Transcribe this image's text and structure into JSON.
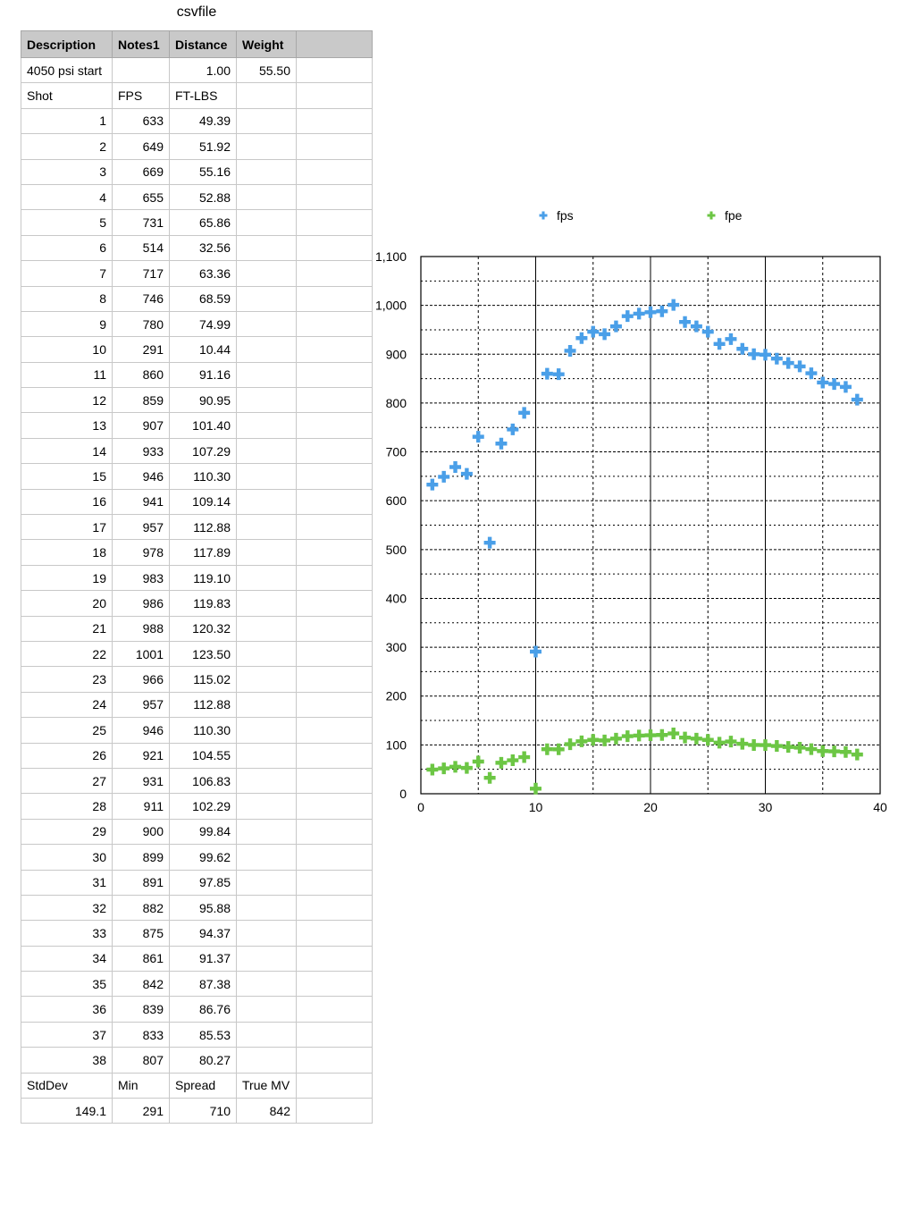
{
  "sheet": {
    "title": "csvfile",
    "header": [
      "Description",
      "Notes1",
      "Distance",
      "Weight",
      ""
    ],
    "meta_row": [
      "4050 psi start",
      "",
      "1.00",
      "55.50",
      ""
    ],
    "col_labels": [
      "Shot",
      "FPS",
      "FT-LBS",
      "",
      ""
    ],
    "shots": [
      [
        "1",
        "633",
        "49.39"
      ],
      [
        "2",
        "649",
        "51.92"
      ],
      [
        "3",
        "669",
        "55.16"
      ],
      [
        "4",
        "655",
        "52.88"
      ],
      [
        "5",
        "731",
        "65.86"
      ],
      [
        "6",
        "514",
        "32.56"
      ],
      [
        "7",
        "717",
        "63.36"
      ],
      [
        "8",
        "746",
        "68.59"
      ],
      [
        "9",
        "780",
        "74.99"
      ],
      [
        "10",
        "291",
        "10.44"
      ],
      [
        "11",
        "860",
        "91.16"
      ],
      [
        "12",
        "859",
        "90.95"
      ],
      [
        "13",
        "907",
        "101.40"
      ],
      [
        "14",
        "933",
        "107.29"
      ],
      [
        "15",
        "946",
        "110.30"
      ],
      [
        "16",
        "941",
        "109.14"
      ],
      [
        "17",
        "957",
        "112.88"
      ],
      [
        "18",
        "978",
        "117.89"
      ],
      [
        "19",
        "983",
        "119.10"
      ],
      [
        "20",
        "986",
        "119.83"
      ],
      [
        "21",
        "988",
        "120.32"
      ],
      [
        "22",
        "1001",
        "123.50"
      ],
      [
        "23",
        "966",
        "115.02"
      ],
      [
        "24",
        "957",
        "112.88"
      ],
      [
        "25",
        "946",
        "110.30"
      ],
      [
        "26",
        "921",
        "104.55"
      ],
      [
        "27",
        "931",
        "106.83"
      ],
      [
        "28",
        "911",
        "102.29"
      ],
      [
        "29",
        "900",
        "99.84"
      ],
      [
        "30",
        "899",
        "99.62"
      ],
      [
        "31",
        "891",
        "97.85"
      ],
      [
        "32",
        "882",
        "95.88"
      ],
      [
        "33",
        "875",
        "94.37"
      ],
      [
        "34",
        "861",
        "91.37"
      ],
      [
        "35",
        "842",
        "87.38"
      ],
      [
        "36",
        "839",
        "86.76"
      ],
      [
        "37",
        "833",
        "85.53"
      ],
      [
        "38",
        "807",
        "80.27"
      ]
    ],
    "stats_labels": [
      "StdDev",
      "Min",
      "Spread",
      "True MV",
      ""
    ],
    "stats_values": [
      "149.1",
      "291",
      "710",
      "842",
      ""
    ]
  },
  "chart_data": {
    "type": "scatter",
    "xlim": [
      0,
      40
    ],
    "ylim": [
      0,
      1100
    ],
    "x_ticks": [
      "0",
      "10",
      "20",
      "30",
      "40"
    ],
    "y_ticks": [
      "0",
      "100",
      "200",
      "300",
      "400",
      "500",
      "600",
      "700",
      "800",
      "900",
      "1,000",
      "1,100"
    ],
    "grid": true,
    "legend_position": "top",
    "series": [
      {
        "name": "fps",
        "color": "#4a9fe8",
        "x": [
          1,
          2,
          3,
          4,
          5,
          6,
          7,
          8,
          9,
          10,
          11,
          12,
          13,
          14,
          15,
          16,
          17,
          18,
          19,
          20,
          21,
          22,
          23,
          24,
          25,
          26,
          27,
          28,
          29,
          30,
          31,
          32,
          33,
          34,
          35,
          36,
          37,
          38
        ],
        "y": [
          633,
          649,
          669,
          655,
          731,
          514,
          717,
          746,
          780,
          291,
          860,
          859,
          907,
          933,
          946,
          941,
          957,
          978,
          983,
          986,
          988,
          1001,
          966,
          957,
          946,
          921,
          931,
          911,
          900,
          899,
          891,
          882,
          875,
          861,
          842,
          839,
          833,
          807
        ]
      },
      {
        "name": "fpe",
        "color": "#6cc644",
        "x": [
          1,
          2,
          3,
          4,
          5,
          6,
          7,
          8,
          9,
          10,
          11,
          12,
          13,
          14,
          15,
          16,
          17,
          18,
          19,
          20,
          21,
          22,
          23,
          24,
          25,
          26,
          27,
          28,
          29,
          30,
          31,
          32,
          33,
          34,
          35,
          36,
          37,
          38
        ],
        "y": [
          49.39,
          51.92,
          55.16,
          52.88,
          65.86,
          32.56,
          63.36,
          68.59,
          74.99,
          10.44,
          91.16,
          90.95,
          101.4,
          107.29,
          110.3,
          109.14,
          112.88,
          117.89,
          119.1,
          119.83,
          120.32,
          123.5,
          115.02,
          112.88,
          110.3,
          104.55,
          106.83,
          102.29,
          99.84,
          99.62,
          97.85,
          95.88,
          94.37,
          91.37,
          87.38,
          86.76,
          85.53,
          80.27
        ]
      }
    ]
  }
}
